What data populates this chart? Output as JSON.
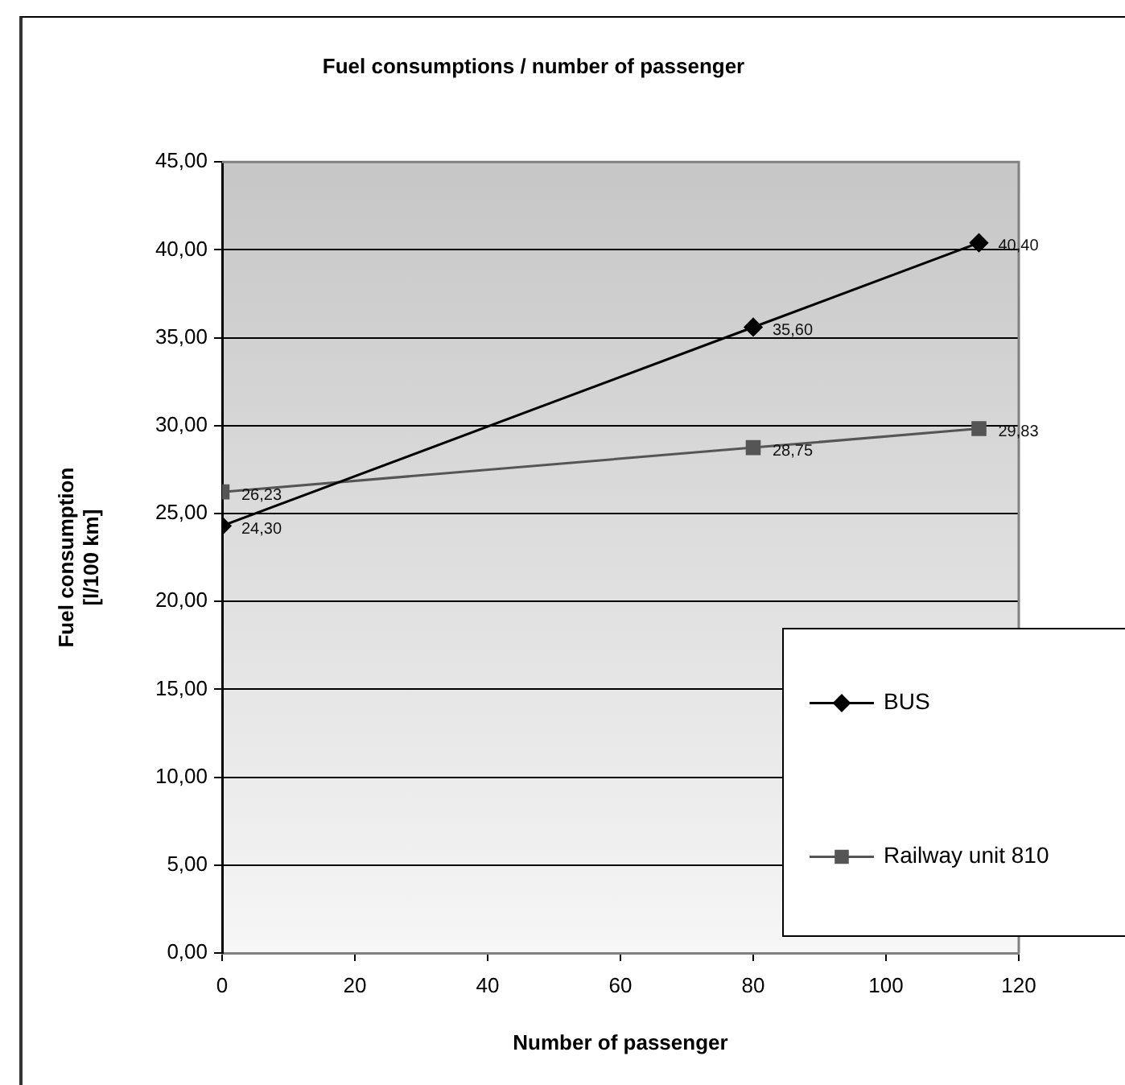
{
  "chart_data": {
    "type": "line",
    "title": "Fuel consumptions / number of passenger",
    "xlabel": "Number of passenger",
    "ylabel": "Fuel consumption\n[l/100 km]",
    "x": [
      0,
      80,
      114
    ],
    "series": [
      {
        "name": "BUS",
        "color": "#000000",
        "marker": "diamond",
        "values": [
          24.3,
          35.6,
          40.4
        ],
        "value_labels": [
          "24,30",
          "35,60",
          "40,40"
        ]
      },
      {
        "name": "Railway unit 810",
        "color": "#555555",
        "marker": "square",
        "values": [
          26.23,
          28.75,
          29.83
        ],
        "value_labels": [
          "26,23",
          "28,75",
          "29,83"
        ]
      }
    ],
    "xlim": [
      0,
      120
    ],
    "xticks": [
      0,
      20,
      40,
      60,
      80,
      100,
      120
    ],
    "ylim": [
      0,
      45
    ],
    "yticks": [
      {
        "value": 0,
        "label": "0,00"
      },
      {
        "value": 5,
        "label": "5,00"
      },
      {
        "value": 10,
        "label": "10,00"
      },
      {
        "value": 15,
        "label": "15,00"
      },
      {
        "value": 20,
        "label": "20,00"
      },
      {
        "value": 25,
        "label": "25,00"
      },
      {
        "value": 30,
        "label": "30,00"
      },
      {
        "value": 35,
        "label": "35,00"
      },
      {
        "value": 40,
        "label": "40,00"
      },
      {
        "value": 45,
        "label": "45,00"
      }
    ],
    "grid": "y",
    "legend": "bottom right"
  }
}
